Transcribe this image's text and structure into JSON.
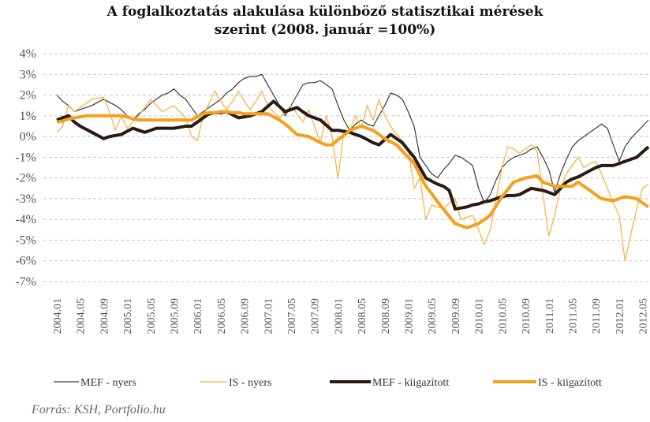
{
  "chart_data": {
    "type": "line",
    "title": [
      "A foglalkoztatás alakulása különböző statisztikai mérések",
      "szerint (2008. január =100%)"
    ],
    "source": "Forrás: KSH, Portfolio.hu",
    "grid": true,
    "legend": "bottom",
    "ylim": [
      -7,
      4
    ],
    "yticks": [
      {
        "value": 4,
        "label": "4%"
      },
      {
        "value": 3,
        "label": "3%"
      },
      {
        "value": 2,
        "label": "2%"
      },
      {
        "value": 1,
        "label": "1%"
      },
      {
        "value": 0,
        "label": "0%"
      },
      {
        "value": -1,
        "label": "-1%"
      },
      {
        "value": -2,
        "label": "-2%"
      },
      {
        "value": -3,
        "label": "-3%"
      },
      {
        "value": -4,
        "label": "-4%"
      },
      {
        "value": -5,
        "label": "-5%"
      },
      {
        "value": -6,
        "label": "-6%"
      },
      {
        "value": -7,
        "label": "-7%"
      }
    ],
    "categories": [
      "2004.01",
      null,
      null,
      null,
      "2004.05",
      null,
      null,
      null,
      "2004.09",
      null,
      null,
      null,
      "2005.01",
      null,
      null,
      null,
      "2005.05",
      null,
      null,
      null,
      "2005.09",
      null,
      null,
      null,
      "2006.01",
      null,
      null,
      null,
      "2006.05",
      null,
      null,
      null,
      "2006.09",
      null,
      null,
      null,
      "2007.01",
      null,
      null,
      null,
      "2007.05",
      null,
      null,
      null,
      "2007.09",
      null,
      null,
      null,
      "2008.01",
      null,
      null,
      null,
      "2008.05",
      null,
      null,
      null,
      "2008.09",
      null,
      null,
      null,
      "2009.01",
      null,
      null,
      null,
      "2009.05",
      null,
      null,
      null,
      "2009.09",
      null,
      null,
      null,
      "2010.01",
      null,
      null,
      null,
      "2010.05",
      null,
      null,
      null,
      "2010.09",
      null,
      null,
      null,
      "2011.01",
      null,
      null,
      null,
      "2011.05",
      null,
      null,
      null,
      "2011.09",
      null,
      null,
      null,
      "2012.01",
      null,
      null,
      null,
      "2012.05",
      null
    ],
    "series": [
      {
        "name": "MEF - nyers",
        "color": "#3a3a3a",
        "line_width": 1.2,
        "values": [
          2.0,
          1.7,
          1.5,
          1.2,
          1.3,
          1.4,
          1.5,
          1.65,
          1.8,
          1.65,
          1.5,
          1.3,
          1.0,
          0.8,
          1.1,
          1.3,
          1.6,
          1.8,
          2.0,
          2.1,
          2.3,
          2.0,
          1.8,
          1.4,
          1.0,
          1.2,
          1.4,
          1.6,
          1.8,
          2.1,
          2.3,
          2.6,
          2.8,
          2.9,
          2.9,
          3.0,
          2.5,
          2.0,
          1.5,
          1.0,
          1.5,
          2.0,
          2.5,
          2.6,
          2.6,
          2.7,
          2.5,
          2.3,
          1.5,
          0.8,
          0.3,
          0.6,
          0.8,
          0.6,
          0.5,
          1.0,
          1.5,
          2.1,
          2.0,
          1.8,
          1.2,
          0.5,
          -1.0,
          -1.4,
          -1.8,
          -2.0,
          -1.6,
          -1.3,
          -0.9,
          -1.0,
          -1.2,
          -1.4,
          -2.5,
          -3.2,
          -2.8,
          -2.1,
          -1.5,
          -1.2,
          -1.0,
          -0.9,
          -0.8,
          -0.6,
          -0.5,
          -1.0,
          -1.6,
          -2.7,
          -1.8,
          -1.1,
          -0.5,
          -0.2,
          0.0,
          0.2,
          0.4,
          0.6,
          0.4,
          -0.4,
          -1.2,
          -0.5,
          -0.1,
          0.2,
          0.5,
          0.8
        ]
      },
      {
        "name": "IS - nyers",
        "color": "#f7ae3e",
        "line_width": 1.2,
        "values": [
          0.2,
          0.5,
          1.5,
          1.2,
          1.4,
          1.6,
          1.8,
          1.85,
          1.9,
          1.2,
          0.3,
          1.0,
          0.4,
          0.7,
          1.0,
          1.4,
          1.8,
          1.5,
          1.2,
          1.35,
          1.5,
          1.2,
          0.9,
          0.0,
          -0.2,
          1.0,
          1.6,
          2.2,
          1.7,
          1.3,
          1.7,
          2.2,
          1.7,
          1.3,
          1.7,
          2.2,
          1.5,
          1.2,
          0.9,
          1.2,
          1.5,
          1.1,
          0.7,
          1.3,
          0.5,
          -0.3,
          1.0,
          0.0,
          -2.0,
          0.2,
          0.3,
          1.0,
          0.4,
          1.5,
          0.8,
          1.8,
          1.0,
          0.5,
          0.1,
          -0.2,
          -0.6,
          -2.5,
          -2.0,
          -4.0,
          -3.3,
          -3.4,
          -3.5,
          -3.2,
          -3.0,
          -4.0,
          -3.9,
          -3.8,
          -4.5,
          -5.2,
          -4.5,
          -3.0,
          -1.5,
          -0.5,
          -0.6,
          -0.8,
          -0.6,
          -0.4,
          -0.7,
          -2.8,
          -4.8,
          -3.8,
          -2.5,
          -1.8,
          -1.4,
          -1.0,
          -1.5,
          -1.3,
          -1.2,
          -1.8,
          -2.5,
          -3.2,
          -3.8,
          -6.0,
          -4.7,
          -3.5,
          -2.5,
          -2.3
        ]
      },
      {
        "name": "MEF - kiigazított",
        "color": "#2a1a12",
        "line_width": 4,
        "values": [
          0.8,
          0.9,
          1.0,
          0.7,
          0.5,
          0.35,
          0.2,
          0.05,
          -0.1,
          0.0,
          0.05,
          0.1,
          0.25,
          0.4,
          0.3,
          0.2,
          0.3,
          0.4,
          0.4,
          0.4,
          0.4,
          0.45,
          0.5,
          0.5,
          0.7,
          0.9,
          1.1,
          1.15,
          1.15,
          1.2,
          1.05,
          0.9,
          0.95,
          1.0,
          1.1,
          1.2,
          1.45,
          1.7,
          1.45,
          1.2,
          1.3,
          1.4,
          1.2,
          1.0,
          0.9,
          0.8,
          0.55,
          0.3,
          0.3,
          0.25,
          0.2,
          0.1,
          0.0,
          -0.15,
          -0.3,
          -0.4,
          -0.15,
          0.1,
          -0.1,
          -0.3,
          -0.65,
          -1.0,
          -1.5,
          -2.0,
          -2.15,
          -2.3,
          -2.4,
          -2.6,
          -3.5,
          -3.45,
          -3.4,
          -3.3,
          -3.25,
          -3.15,
          -3.1,
          -3.0,
          -2.9,
          -2.85,
          -2.85,
          -2.8,
          -2.65,
          -2.5,
          -2.55,
          -2.6,
          -2.7,
          -2.8,
          -2.5,
          -2.2,
          -2.05,
          -1.95,
          -1.8,
          -1.65,
          -1.5,
          -1.4,
          -1.4,
          -1.4,
          -1.3,
          -1.2,
          -1.1,
          -1.0,
          -0.75,
          -0.5
        ]
      },
      {
        "name": "IS - kiigazított",
        "color": "#f5a01a",
        "line_width": 4,
        "values": [
          0.7,
          0.75,
          0.85,
          0.9,
          0.95,
          1.0,
          1.0,
          1.0,
          1.0,
          1.0,
          1.0,
          1.0,
          0.95,
          0.85,
          0.8,
          0.8,
          0.8,
          0.8,
          0.8,
          0.8,
          0.8,
          0.8,
          0.8,
          0.8,
          0.95,
          1.1,
          1.15,
          1.15,
          1.2,
          1.2,
          1.15,
          1.15,
          1.1,
          1.1,
          1.1,
          1.1,
          1.1,
          0.95,
          0.8,
          0.6,
          0.35,
          0.1,
          0.05,
          0.0,
          -0.15,
          -0.3,
          -0.4,
          -0.4,
          -0.15,
          0.05,
          0.3,
          0.4,
          0.5,
          0.4,
          0.3,
          0.1,
          -0.1,
          -0.25,
          -0.4,
          -0.7,
          -1.0,
          -1.3,
          -1.85,
          -2.4,
          -2.75,
          -3.15,
          -3.5,
          -3.85,
          -4.2,
          -4.3,
          -4.4,
          -4.3,
          -4.2,
          -4.0,
          -3.8,
          -3.35,
          -2.9,
          -2.55,
          -2.2,
          -2.1,
          -2.0,
          -1.95,
          -1.9,
          -2.2,
          -2.3,
          -2.4,
          -2.4,
          -2.4,
          -2.4,
          -2.2,
          -2.4,
          -2.6,
          -2.8,
          -3.0,
          -3.05,
          -3.1,
          -3.0,
          -2.9,
          -2.95,
          -3.0,
          -3.2,
          -3.4
        ]
      }
    ]
  }
}
